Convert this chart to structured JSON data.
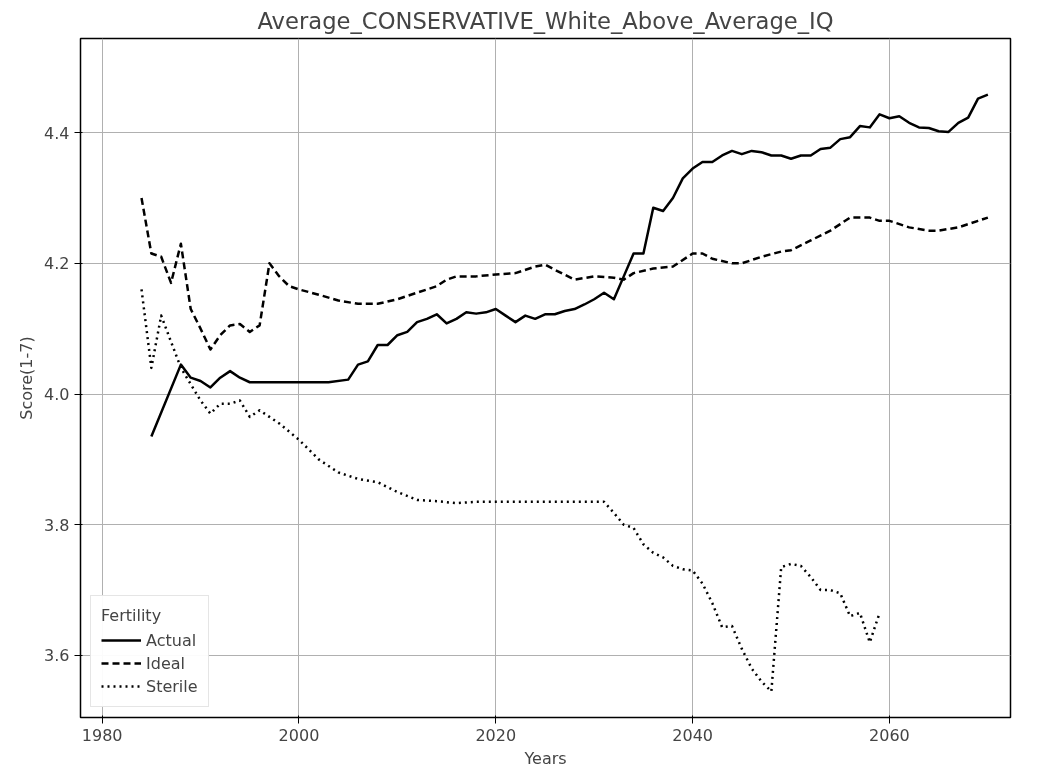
{
  "chart_data": {
    "type": "line",
    "title": "Average_CONSERVATIVE_White_Above_Average_IQ",
    "xlabel": "Years",
    "ylabel": "Score(1-7)",
    "legend_title": "Fertility",
    "legend": "bottom left",
    "grid": true,
    "xlim": [
      1977.8,
      2072.3
    ],
    "ylim": [
      3.505,
      4.544
    ],
    "xticks": [
      1980,
      2000,
      2020,
      2040,
      2060
    ],
    "yticks": [
      {
        "value": 3.6,
        "label": "3.6"
      },
      {
        "value": 3.8,
        "label": "3.8"
      },
      {
        "value": 4.0,
        "label": "4.0"
      },
      {
        "value": 4.2,
        "label": "4.2"
      },
      {
        "value": 4.4,
        "label": "4.4"
      }
    ],
    "series": [
      {
        "name": "Actual",
        "color": "#000000",
        "line_style": "solid",
        "x": [
          1985,
          1988,
          1989,
          1990,
          1991,
          1992,
          1993,
          1994,
          1995,
          2000,
          2003,
          2005,
          2006,
          2007,
          2008,
          2009,
          2010,
          2011,
          2012,
          2013,
          2014,
          2015,
          2016,
          2017,
          2018,
          2019,
          2020,
          2021,
          2022,
          2023,
          2024,
          2025,
          2026,
          2027,
          2028,
          2029,
          2030,
          2031,
          2032,
          2033,
          2034,
          2035,
          2036,
          2037,
          2038,
          2039,
          2040,
          2041,
          2042,
          2043,
          2044,
          2045,
          2046,
          2047,
          2048,
          2049,
          2050,
          2051,
          2052,
          2053,
          2054,
          2055,
          2056,
          2057,
          2058,
          2059,
          2060,
          2061,
          2062,
          2063,
          2064,
          2065,
          2066,
          2067,
          2068,
          2069,
          2070
        ],
        "values": [
          3.935,
          4.045,
          4.025,
          4.02,
          4.01,
          4.025,
          4.035,
          4.025,
          4.018,
          4.018,
          4.018,
          4.022,
          4.045,
          4.05,
          4.075,
          4.075,
          4.09,
          4.095,
          4.11,
          4.115,
          4.122,
          4.108,
          4.115,
          4.125,
          4.123,
          4.125,
          4.13,
          4.12,
          4.11,
          4.12,
          4.115,
          4.122,
          4.122,
          4.127,
          4.13,
          4.137,
          4.145,
          4.155,
          4.145,
          4.18,
          4.215,
          4.215,
          4.285,
          4.28,
          4.3,
          4.33,
          4.345,
          4.355,
          4.355,
          4.365,
          4.372,
          4.367,
          4.372,
          4.37,
          4.365,
          4.365,
          4.36,
          4.365,
          4.365,
          4.375,
          4.377,
          4.39,
          4.393,
          4.41,
          4.408,
          4.428,
          4.422,
          4.425,
          4.415,
          4.408,
          4.407,
          4.402,
          4.401,
          4.415,
          4.423,
          4.452,
          4.458
        ]
      },
      {
        "name": "Ideal",
        "color": "#000000",
        "line_style": "dashed",
        "x": [
          1984,
          1985,
          1986,
          1987,
          1988,
          1989,
          1990,
          1991,
          1992,
          1993,
          1994,
          1995,
          1996,
          1997,
          1998,
          1999,
          2000,
          2002,
          2004,
          2006,
          2008,
          2010,
          2012,
          2014,
          2015,
          2016,
          2018,
          2020,
          2022,
          2024,
          2025,
          2026,
          2028,
          2030,
          2032,
          2033,
          2034,
          2036,
          2038,
          2040,
          2041,
          2042,
          2044,
          2045,
          2047,
          2049,
          2050,
          2052,
          2054,
          2055,
          2056,
          2058,
          2059,
          2060,
          2062,
          2064,
          2065,
          2067,
          2069,
          2070
        ],
        "values": [
          4.3,
          4.215,
          4.21,
          4.17,
          4.23,
          4.13,
          4.1,
          4.068,
          4.09,
          4.105,
          4.107,
          4.095,
          4.105,
          4.2,
          4.18,
          4.165,
          4.16,
          4.152,
          4.143,
          4.138,
          4.138,
          4.145,
          4.155,
          4.165,
          4.175,
          4.18,
          4.18,
          4.183,
          4.185,
          4.195,
          4.198,
          4.19,
          4.175,
          4.18,
          4.178,
          4.175,
          4.185,
          4.192,
          4.195,
          4.215,
          4.215,
          4.207,
          4.2,
          4.2,
          4.21,
          4.218,
          4.22,
          4.235,
          4.25,
          4.26,
          4.27,
          4.27,
          4.265,
          4.265,
          4.255,
          4.25,
          4.25,
          4.255,
          4.265,
          4.27
        ]
      },
      {
        "name": "Sterile",
        "color": "#000000",
        "line_style": "dotted",
        "x": [
          1984,
          1985,
          1986,
          1987,
          1988,
          1989,
          1990,
          1991,
          1992,
          1993,
          1994,
          1995,
          1996,
          1997,
          1998,
          2000,
          2002,
          2004,
          2006,
          2008,
          2010,
          2012,
          2014,
          2016,
          2018,
          2020,
          2025,
          2031,
          2032,
          2033,
          2034,
          2035,
          2036,
          2037,
          2038,
          2039,
          2040,
          2041,
          2042,
          2043,
          2044,
          2045,
          2046,
          2047,
          2048,
          2049,
          2050,
          2051,
          2052,
          2053,
          2054,
          2055,
          2056,
          2057,
          2058,
          2059
        ],
        "values": [
          4.16,
          4.04,
          4.12,
          4.08,
          4.04,
          4.015,
          3.99,
          3.97,
          3.985,
          3.985,
          3.99,
          3.965,
          3.975,
          3.965,
          3.955,
          3.93,
          3.9,
          3.88,
          3.87,
          3.865,
          3.85,
          3.838,
          3.836,
          3.833,
          3.835,
          3.835,
          3.835,
          3.835,
          3.818,
          3.8,
          3.795,
          3.77,
          3.757,
          3.75,
          3.737,
          3.732,
          3.73,
          3.71,
          3.68,
          3.643,
          3.645,
          3.61,
          3.58,
          3.56,
          3.545,
          3.735,
          3.74,
          3.737,
          3.72,
          3.7,
          3.7,
          3.695,
          3.66,
          3.665,
          3.62,
          3.665
        ]
      }
    ]
  }
}
